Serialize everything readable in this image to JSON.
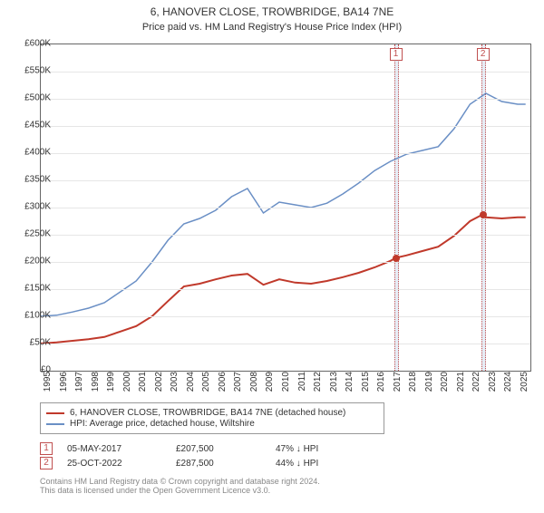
{
  "title": "6, HANOVER CLOSE, TROWBRIDGE, BA14 7NE",
  "subtitle": "Price paid vs. HM Land Registry's House Price Index (HPI)",
  "chart": {
    "xlim": [
      1995,
      2025.8
    ],
    "ylim": [
      0,
      600000
    ],
    "ytick_step": 50000,
    "xtick_step": 1,
    "background": "#ffffff",
    "grid_color": "#e6e6e6",
    "border_color": "#666666",
    "series": {
      "price_paid": {
        "color": "#c0392b",
        "width": 2,
        "points": [
          [
            1995,
            50000
          ],
          [
            1996,
            52000
          ],
          [
            1997,
            55000
          ],
          [
            1998,
            58000
          ],
          [
            1999,
            62000
          ],
          [
            2000,
            72000
          ],
          [
            2001,
            82000
          ],
          [
            2002,
            100000
          ],
          [
            2003,
            128000
          ],
          [
            2004,
            155000
          ],
          [
            2005,
            160000
          ],
          [
            2006,
            168000
          ],
          [
            2007,
            175000
          ],
          [
            2008,
            178000
          ],
          [
            2009,
            158000
          ],
          [
            2010,
            168000
          ],
          [
            2011,
            162000
          ],
          [
            2012,
            160000
          ],
          [
            2013,
            165000
          ],
          [
            2014,
            172000
          ],
          [
            2015,
            180000
          ],
          [
            2016,
            190000
          ],
          [
            2017,
            202000
          ],
          [
            2017.33,
            207500
          ],
          [
            2018,
            212000
          ],
          [
            2019,
            220000
          ],
          [
            2020,
            228000
          ],
          [
            2021,
            248000
          ],
          [
            2022,
            275000
          ],
          [
            2022.81,
            287500
          ],
          [
            2023,
            282000
          ],
          [
            2024,
            280000
          ],
          [
            2025,
            282000
          ],
          [
            2025.5,
            282000
          ]
        ]
      },
      "hpi": {
        "color": "#6a8fc5",
        "width": 1.5,
        "points": [
          [
            1995,
            100000
          ],
          [
            1996,
            102000
          ],
          [
            1997,
            108000
          ],
          [
            1998,
            115000
          ],
          [
            1999,
            125000
          ],
          [
            2000,
            145000
          ],
          [
            2001,
            165000
          ],
          [
            2002,
            200000
          ],
          [
            2003,
            240000
          ],
          [
            2004,
            270000
          ],
          [
            2005,
            280000
          ],
          [
            2006,
            295000
          ],
          [
            2007,
            320000
          ],
          [
            2008,
            335000
          ],
          [
            2009,
            290000
          ],
          [
            2010,
            310000
          ],
          [
            2011,
            305000
          ],
          [
            2012,
            300000
          ],
          [
            2013,
            308000
          ],
          [
            2014,
            325000
          ],
          [
            2015,
            345000
          ],
          [
            2016,
            368000
          ],
          [
            2017,
            385000
          ],
          [
            2018,
            398000
          ],
          [
            2019,
            405000
          ],
          [
            2020,
            412000
          ],
          [
            2021,
            445000
          ],
          [
            2022,
            490000
          ],
          [
            2023,
            510000
          ],
          [
            2024,
            495000
          ],
          [
            2025,
            490000
          ],
          [
            2025.5,
            490000
          ]
        ]
      }
    },
    "markers": [
      {
        "label": "1",
        "x_start": 2017.25,
        "x_end": 2017.42,
        "dot_x": 2017.33,
        "dot_y": 207500
      },
      {
        "label": "2",
        "x_start": 2022.73,
        "x_end": 2022.9,
        "dot_x": 2022.81,
        "dot_y": 287500
      }
    ],
    "marker_band_color": "#e6ecf5",
    "marker_border_color": "#c05050",
    "dot_color": "#c0392b"
  },
  "yticks": [
    {
      "v": 0,
      "label": "£0"
    },
    {
      "v": 50000,
      "label": "£50K"
    },
    {
      "v": 100000,
      "label": "£100K"
    },
    {
      "v": 150000,
      "label": "£150K"
    },
    {
      "v": 200000,
      "label": "£200K"
    },
    {
      "v": 250000,
      "label": "£250K"
    },
    {
      "v": 300000,
      "label": "£300K"
    },
    {
      "v": 350000,
      "label": "£350K"
    },
    {
      "v": 400000,
      "label": "£400K"
    },
    {
      "v": 450000,
      "label": "£450K"
    },
    {
      "v": 500000,
      "label": "£500K"
    },
    {
      "v": 550000,
      "label": "£550K"
    },
    {
      "v": 600000,
      "label": "£600K"
    }
  ],
  "xticks": [
    "1995",
    "1996",
    "1997",
    "1998",
    "1999",
    "2000",
    "2001",
    "2002",
    "2003",
    "2004",
    "2005",
    "2006",
    "2007",
    "2008",
    "2009",
    "2010",
    "2011",
    "2012",
    "2013",
    "2014",
    "2015",
    "2016",
    "2017",
    "2018",
    "2019",
    "2020",
    "2021",
    "2022",
    "2023",
    "2024",
    "2025"
  ],
  "legend": [
    {
      "color": "#c0392b",
      "label": "6, HANOVER CLOSE, TROWBRIDGE, BA14 7NE (detached house)"
    },
    {
      "color": "#6a8fc5",
      "label": "HPI: Average price, detached house, Wiltshire"
    }
  ],
  "sales": [
    {
      "marker": "1",
      "date": "05-MAY-2017",
      "price": "£207,500",
      "hpi": "47% ↓ HPI"
    },
    {
      "marker": "2",
      "date": "25-OCT-2022",
      "price": "£287,500",
      "hpi": "44% ↓ HPI"
    }
  ],
  "footer_line1": "Contains HM Land Registry data © Crown copyright and database right 2024.",
  "footer_line2": "This data is licensed under the Open Government Licence v3.0."
}
